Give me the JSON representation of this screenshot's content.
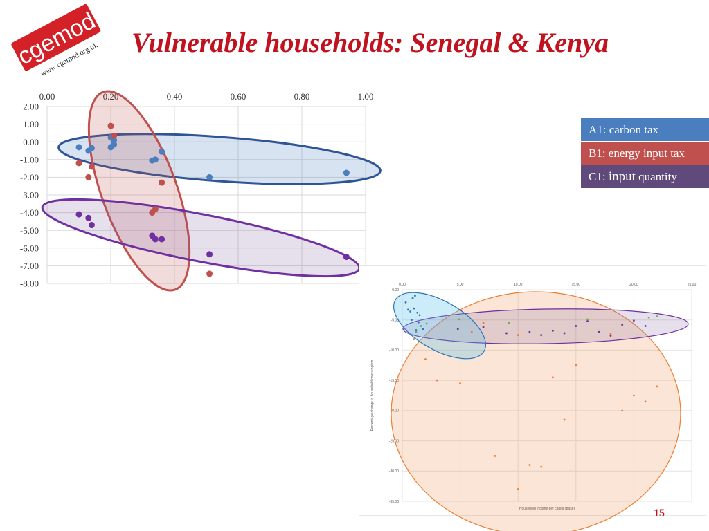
{
  "slide": {
    "title": "Vulnerable households: Senegal & Kenya",
    "page_number": "15"
  },
  "logo": {
    "name": "cgemod",
    "url": "www.cgemod.org.uk",
    "color": "#d42027"
  },
  "legend": [
    {
      "label": "A1: carbon tax",
      "color": "#4a7ebf"
    },
    {
      "label": "B1: energy input tax",
      "color": "#c0504d"
    },
    {
      "label_prefix": "C1: ",
      "label_big": "input",
      "label_suffix": " quantity",
      "color": "#604a7b"
    }
  ],
  "chart_data": [
    {
      "type": "scatter",
      "title": "",
      "xlabel": "",
      "ylabel": "",
      "x_axis_position": "top",
      "xlim": [
        0,
        1.0
      ],
      "ylim": [
        -8,
        2
      ],
      "x_ticks": [
        "0.00",
        "0.20",
        "0.40",
        "0.60",
        "0.80",
        "1.00"
      ],
      "y_ticks": [
        "2.00",
        "1.00",
        "0.00",
        "-1.00",
        "-2.00",
        "-3.00",
        "-4.00",
        "-5.00",
        "-6.00",
        "-7.00",
        "-8.00"
      ],
      "grid": true,
      "series": [
        {
          "color": "#4a7ebf",
          "points": [
            [
              0.1,
              -0.3
            ],
            [
              0.13,
              -0.5
            ],
            [
              0.14,
              -0.35
            ],
            [
              0.2,
              0.25
            ],
            [
              0.21,
              0.1
            ],
            [
              0.21,
              -0.15
            ],
            [
              0.2,
              -0.3
            ],
            [
              0.33,
              -1.05
            ],
            [
              0.34,
              -1.0
            ],
            [
              0.36,
              -0.55
            ],
            [
              0.51,
              -2.0
            ],
            [
              0.94,
              -1.75
            ]
          ]
        },
        {
          "color": "#c0504d",
          "points": [
            [
              0.2,
              0.9
            ],
            [
              0.21,
              0.35
            ],
            [
              0.1,
              -1.2
            ],
            [
              0.14,
              -1.4
            ],
            [
              0.13,
              -2.0
            ],
            [
              0.36,
              -2.3
            ],
            [
              0.34,
              -3.8
            ],
            [
              0.33,
              -4.0
            ],
            [
              0.51,
              -7.45
            ]
          ]
        },
        {
          "color": "#7030a0",
          "points": [
            [
              0.1,
              -4.1
            ],
            [
              0.13,
              -4.3
            ],
            [
              0.14,
              -4.7
            ],
            [
              0.33,
              -5.3
            ],
            [
              0.34,
              -5.5
            ],
            [
              0.36,
              -5.5
            ],
            [
              0.51,
              -6.35
            ],
            [
              0.94,
              -6.5
            ]
          ]
        }
      ]
    },
    {
      "type": "scatter",
      "title": "",
      "xlabel": "Household income per capita (base)",
      "ylabel": "Percentage change in household consumption",
      "x_axis_position": "top",
      "xlim": [
        0,
        25
      ],
      "ylim": [
        -35,
        0
      ],
      "x_ticks": [
        "0.00",
        "5.00",
        "10.00",
        "15.00",
        "20.00",
        "25.00"
      ],
      "y_ticks": [
        "0.00",
        "-5.00",
        "-10.00",
        "-15.00",
        "-20.00",
        "-25.00",
        "-30.00",
        "-35.00"
      ],
      "grid": true,
      "series": [
        {
          "color": "#2e75b6",
          "points": [
            [
              0.3,
              -2.1
            ],
            [
              0.5,
              -3.3
            ],
            [
              0.7,
              -3.6
            ],
            [
              0.9,
              -1.4
            ],
            [
              1.1,
              -1.0
            ],
            [
              1.0,
              -3.1
            ],
            [
              1.3,
              -3.8
            ],
            [
              1.5,
              -4.2
            ],
            [
              0.8,
              -5.0
            ],
            [
              1.4,
              -5.4
            ],
            [
              1.8,
              -6.5
            ],
            [
              1.2,
              -6.7
            ]
          ]
        },
        {
          "color": "#70ad47",
          "points": [
            [
              1.2,
              -7.0
            ],
            [
              1.6,
              -6.0
            ],
            [
              2.1,
              -5.6
            ],
            [
              4.9,
              -4.9
            ],
            [
              9.2,
              -5.5
            ],
            [
              16.0,
              -4.9
            ],
            [
              21.3,
              -4.6
            ],
            [
              22.0,
              -4.4
            ]
          ]
        },
        {
          "color": "#ed7d31",
          "points": [
            [
              1.0,
              -8.2
            ],
            [
              2.0,
              -11.5
            ],
            [
              3.0,
              -15.0
            ],
            [
              5.0,
              -15.5
            ],
            [
              6.0,
              -7.0
            ],
            [
              8.0,
              -27.5
            ],
            [
              10.0,
              -33.0
            ],
            [
              11.0,
              -29.0
            ],
            [
              12.0,
              -29.3
            ],
            [
              13.0,
              -14.5
            ],
            [
              14.0,
              -21.5
            ],
            [
              15.0,
              -12.5
            ],
            [
              19.0,
              -20.0
            ],
            [
              20.0,
              -17.5
            ],
            [
              21.0,
              -18.5
            ],
            [
              22.0,
              -16.0
            ],
            [
              7.0,
              -5.5
            ],
            [
              10.0,
              -7.5
            ],
            [
              18.0,
              -7.3
            ]
          ]
        },
        {
          "color": "#7030a0",
          "points": [
            [
              4.8,
              -6.5
            ],
            [
              7.0,
              -6.2
            ],
            [
              9.0,
              -7.2
            ],
            [
              11.0,
              -7.0
            ],
            [
              12.0,
              -7.5
            ],
            [
              13.0,
              -6.8
            ],
            [
              14.0,
              -7.2
            ],
            [
              15.0,
              -6.0
            ],
            [
              16.0,
              -5.2
            ],
            [
              17.0,
              -7.0
            ],
            [
              18.0,
              -7.6
            ],
            [
              19.0,
              -5.8
            ],
            [
              20.0,
              -5.1
            ],
            [
              21.0,
              -6.0
            ]
          ]
        }
      ]
    }
  ]
}
